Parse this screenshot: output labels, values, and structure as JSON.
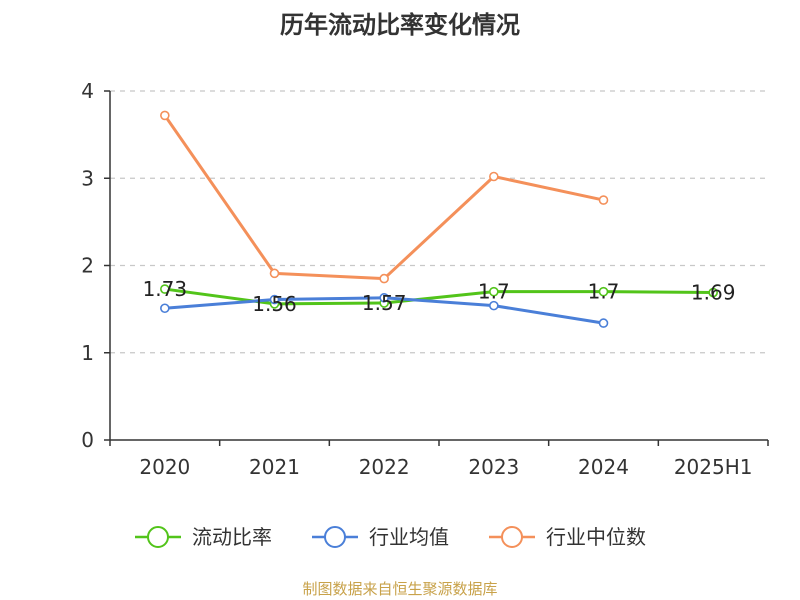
{
  "chart_data": {
    "type": "line",
    "title": "历年流动比率变化情况",
    "categories": [
      "2020",
      "2021",
      "2022",
      "2023",
      "2024",
      "2025H1"
    ],
    "y_ticks": [
      "0",
      "1",
      "2",
      "3",
      "4"
    ],
    "ylim": [
      0,
      4
    ],
    "grid": true,
    "legend_position": "bottom",
    "series": [
      {
        "name": "流动比率",
        "color": "#52c41a",
        "values": [
          1.73,
          1.56,
          1.57,
          1.7,
          1.7,
          1.69
        ],
        "labels": [
          "1.73",
          "1.56",
          "1.57",
          "1.7",
          "1.7",
          "1.69"
        ]
      },
      {
        "name": "行业均值",
        "color": "#4a7fd8",
        "values": [
          1.51,
          1.61,
          1.63,
          1.54,
          1.34,
          null
        ]
      },
      {
        "name": "行业中位数",
        "color": "#f4905a",
        "values": [
          3.72,
          1.91,
          1.85,
          3.02,
          2.75,
          null
        ]
      }
    ],
    "source": "制图数据来自恒生聚源数据库"
  }
}
